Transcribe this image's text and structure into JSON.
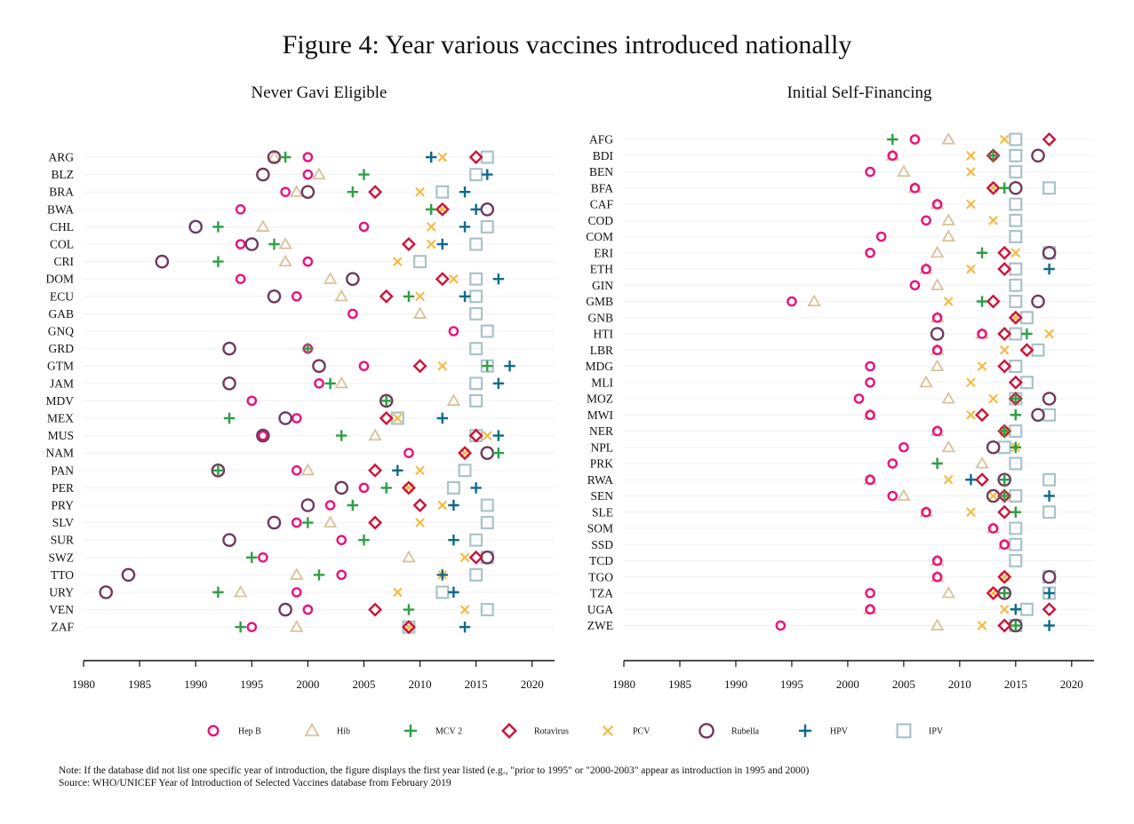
{
  "title": "Figure 4: Year various vaccines introduced nationally",
  "note": "Note: If the database did not list one specific year of introduction, the figure displays the first year listed (e.g., \"prior to 1995\" or \"2000-2003\" appear as introduction in 1995 and 2000)",
  "source": "Source: WHO/UNICEF Year of Introduction of Selected Vaccines database from February 2019",
  "chart_data": {
    "type": "scatter",
    "xlim": [
      1980,
      2022
    ],
    "x_ticks": [
      1980,
      1985,
      1990,
      1995,
      2000,
      2005,
      2010,
      2015,
      2020
    ],
    "grid": true,
    "legend_position": "bottom",
    "vaccines": [
      {
        "key": "hepb",
        "name": "Hep B",
        "marker": "circle-small",
        "color": "#e8127e"
      },
      {
        "key": "hib",
        "name": "Hib",
        "marker": "triangle",
        "color": "#d8c29b"
      },
      {
        "key": "mcv2",
        "name": "MCV 2",
        "marker": "plus-green",
        "color": "#2f9e45"
      },
      {
        "key": "rota",
        "name": "Rotavirus",
        "marker": "diamond",
        "color": "#cf1238"
      },
      {
        "key": "pcv",
        "name": "PCV",
        "marker": "x",
        "color": "#f5b942"
      },
      {
        "key": "rubella",
        "name": "Rubella",
        "marker": "circle-large",
        "color": "#6e3a5e"
      },
      {
        "key": "hpv",
        "name": "HPV",
        "marker": "plus-blue",
        "color": "#0f6a8a"
      },
      {
        "key": "ipv",
        "name": "IPV",
        "marker": "square",
        "color": "#a9c3c6"
      }
    ],
    "panels": [
      {
        "title": "Never Gavi Eligible",
        "countries": [
          {
            "code": "ARG",
            "hepb": 2000,
            "hib": 1997,
            "mcv2": 1998,
            "rota": 2015,
            "pcv": 2012,
            "rubella": 1997,
            "hpv": 2011,
            "ipv": 2016
          },
          {
            "code": "BLZ",
            "hepb": 2000,
            "hib": 2001,
            "mcv2": 2005,
            "rubella": 1996,
            "hpv": 2016,
            "ipv": 2015
          },
          {
            "code": "BRA",
            "hepb": 1998,
            "hib": 1999,
            "mcv2": 2004,
            "rota": 2006,
            "pcv": 2010,
            "rubella": 2000,
            "hpv": 2014,
            "ipv": 2012
          },
          {
            "code": "BWA",
            "hepb": 1994,
            "mcv2": 2011,
            "rota": 2012,
            "pcv": 2012,
            "rubella": 2016,
            "hpv": 2015
          },
          {
            "code": "CHL",
            "hepb": 2005,
            "hib": 1996,
            "mcv2": 1992,
            "pcv": 2011,
            "rubella": 1990,
            "hpv": 2014,
            "ipv": 2016
          },
          {
            "code": "COL",
            "hepb": 1994,
            "hib": 1998,
            "mcv2": 1997,
            "rota": 2009,
            "pcv": 2011,
            "rubella": 1995,
            "hpv": 2012,
            "ipv": 2015
          },
          {
            "code": "CRI",
            "hepb": 2000,
            "hib": 1998,
            "mcv2": 1992,
            "pcv": 2008,
            "rubella": 1987,
            "ipv": 2010
          },
          {
            "code": "DOM",
            "hepb": 1994,
            "hib": 2002,
            "rota": 2012,
            "pcv": 2013,
            "rubella": 2004,
            "hpv": 2017,
            "ipv": 2015
          },
          {
            "code": "ECU",
            "hepb": 1999,
            "hib": 2003,
            "mcv2": 2009,
            "rota": 2007,
            "pcv": 2010,
            "rubella": 1997,
            "hpv": 2014,
            "ipv": 2015
          },
          {
            "code": "GAB",
            "hepb": 2004,
            "hib": 2010,
            "ipv": 2015
          },
          {
            "code": "GNQ",
            "hepb": 2013,
            "ipv": 2016
          },
          {
            "code": "GRD",
            "hepb": 2000,
            "mcv2": 2000,
            "rubella": 1993,
            "ipv": 2015
          },
          {
            "code": "GTM",
            "hepb": 2005,
            "mcv2": 2016,
            "rota": 2010,
            "pcv": 2012,
            "rubella": 2001,
            "hpv": 2018,
            "ipv": 2016
          },
          {
            "code": "JAM",
            "hepb": 2001,
            "hib": 2003,
            "mcv2": 2002,
            "rubella": 1993,
            "hpv": 2017,
            "ipv": 2015
          },
          {
            "code": "MDV",
            "hepb": 1995,
            "hib": 2013,
            "mcv2": 2007,
            "rubella": 2007,
            "ipv": 2015
          },
          {
            "code": "MEX",
            "hepb": 1999,
            "mcv2": 1993,
            "rota": 2007,
            "pcv": 2008,
            "rubella": 1998,
            "hpv": 2012,
            "ipv": 2008
          },
          {
            "code": "MUS",
            "hepb": 1996,
            "hib": 2006,
            "mcv2": 2003,
            "rota": 2015,
            "pcv": 2016,
            "rubella": 1996,
            "hpv": 2017,
            "ipv": 2015
          },
          {
            "code": "NAM",
            "hepb": 2009,
            "mcv2": 2017,
            "rota": 2014,
            "pcv": 2014,
            "rubella": 2016
          },
          {
            "code": "PAN",
            "hepb": 1999,
            "hib": 2000,
            "mcv2": 1992,
            "rota": 2006,
            "pcv": 2010,
            "rubella": 1992,
            "hpv": 2008,
            "ipv": 2014
          },
          {
            "code": "PER",
            "hepb": 2005,
            "mcv2": 2007,
            "rota": 2009,
            "pcv": 2009,
            "rubella": 2003,
            "hpv": 2015,
            "ipv": 2013
          },
          {
            "code": "PRY",
            "hepb": 2002,
            "mcv2": 2004,
            "rota": 2010,
            "pcv": 2012,
            "rubella": 2000,
            "hpv": 2013,
            "ipv": 2016
          },
          {
            "code": "SLV",
            "hepb": 1999,
            "hib": 2002,
            "mcv2": 2000,
            "rota": 2006,
            "pcv": 2010,
            "rubella": 1997,
            "ipv": 2016
          },
          {
            "code": "SUR",
            "hepb": 2003,
            "mcv2": 2005,
            "rubella": 1993,
            "hpv": 2013,
            "ipv": 2015
          },
          {
            "code": "SWZ",
            "hepb": 1996,
            "hib": 2009,
            "mcv2": 1995,
            "rota": 2015,
            "pcv": 2014,
            "rubella": 2016,
            "ipv": 2016
          },
          {
            "code": "TTO",
            "hepb": 2003,
            "hib": 1999,
            "mcv2": 2001,
            "pcv": 2012,
            "rubella": 1984,
            "hpv": 2012,
            "ipv": 2015
          },
          {
            "code": "URY",
            "hepb": 1999,
            "hib": 1994,
            "mcv2": 1992,
            "pcv": 2008,
            "rubella": 1982,
            "hpv": 2013,
            "ipv": 2012
          },
          {
            "code": "VEN",
            "hepb": 2000,
            "mcv2": 2009,
            "rota": 2006,
            "pcv": 2014,
            "rubella": 1998,
            "ipv": 2016
          },
          {
            "code": "ZAF",
            "hepb": 1995,
            "hib": 1999,
            "mcv2": 1994,
            "rota": 2009,
            "pcv": 2009,
            "hpv": 2014,
            "ipv": 2009
          }
        ]
      },
      {
        "title": "Initial Self-Financing",
        "countries": [
          {
            "code": "AFG",
            "hepb": 2006,
            "hib": 2009,
            "mcv2": 2004,
            "rota": 2018,
            "pcv": 2014,
            "ipv": 2015
          },
          {
            "code": "BDI",
            "hepb": 2004,
            "hib": 2004,
            "mcv2": 2013,
            "rota": 2013,
            "pcv": 2011,
            "rubella": 2017,
            "ipv": 2015
          },
          {
            "code": "BEN",
            "hepb": 2002,
            "hib": 2005,
            "pcv": 2011,
            "ipv": 2015
          },
          {
            "code": "BFA",
            "hepb": 2006,
            "hib": 2006,
            "mcv2": 2014,
            "rota": 2013,
            "pcv": 2013,
            "rubella": 2015,
            "ipv": 2018
          },
          {
            "code": "CAF",
            "hepb": 2008,
            "hib": 2008,
            "pcv": 2011,
            "ipv": 2015
          },
          {
            "code": "COD",
            "hepb": 2007,
            "hib": 2009,
            "pcv": 2013,
            "ipv": 2015
          },
          {
            "code": "COM",
            "hepb": 2003,
            "hib": 2009,
            "ipv": 2015
          },
          {
            "code": "ERI",
            "hepb": 2002,
            "hib": 2008,
            "mcv2": 2012,
            "rota": 2014,
            "pcv": 2015,
            "rubella": 2018,
            "ipv": 2018
          },
          {
            "code": "ETH",
            "hepb": 2007,
            "hib": 2007,
            "rota": 2014,
            "pcv": 2011,
            "hpv": 2018,
            "ipv": 2015
          },
          {
            "code": "GIN",
            "hepb": 2006,
            "hib": 2008,
            "ipv": 2015
          },
          {
            "code": "GMB",
            "hepb": 1995,
            "hib": 1997,
            "mcv2": 2012,
            "rota": 2013,
            "pcv": 2009,
            "rubella": 2017,
            "ipv": 2015
          },
          {
            "code": "GNB",
            "hepb": 2008,
            "hib": 2008,
            "rota": 2015,
            "pcv": 2015,
            "ipv": 2016
          },
          {
            "code": "HTI",
            "hepb": 2012,
            "hib": 2012,
            "mcv2": 2016,
            "rota": 2014,
            "pcv": 2018,
            "rubella": 2008,
            "ipv": 2015
          },
          {
            "code": "LBR",
            "hepb": 2008,
            "hib": 2008,
            "rota": 2016,
            "pcv": 2014,
            "ipv": 2017
          },
          {
            "code": "MDG",
            "hepb": 2002,
            "hib": 2008,
            "rota": 2014,
            "pcv": 2012,
            "ipv": 2015
          },
          {
            "code": "MLI",
            "hepb": 2002,
            "hib": 2007,
            "rota": 2015,
            "pcv": 2011,
            "ipv": 2016
          },
          {
            "code": "MOZ",
            "hepb": 2001,
            "hib": 2009,
            "mcv2": 2015,
            "rota": 2015,
            "pcv": 2013,
            "rubella": 2018,
            "ipv": 2015
          },
          {
            "code": "MWI",
            "hepb": 2002,
            "hib": 2002,
            "mcv2": 2015,
            "rota": 2012,
            "pcv": 2011,
            "rubella": 2017,
            "ipv": 2018
          },
          {
            "code": "NER",
            "hepb": 2008,
            "hib": 2008,
            "mcv2": 2014,
            "rota": 2014,
            "pcv": 2014,
            "ipv": 2015
          },
          {
            "code": "NPL",
            "hepb": 2005,
            "hib": 2009,
            "mcv2": 2015,
            "pcv": 2015,
            "rubella": 2013,
            "ipv": 2014
          },
          {
            "code": "PRK",
            "hepb": 2004,
            "hib": 2012,
            "mcv2": 2008,
            "ipv": 2015
          },
          {
            "code": "RWA",
            "hepb": 2002,
            "hib": 2002,
            "mcv2": 2014,
            "rota": 2012,
            "pcv": 2009,
            "rubella": 2014,
            "hpv": 2011,
            "ipv": 2018
          },
          {
            "code": "SEN",
            "hepb": 2004,
            "hib": 2005,
            "mcv2": 2014,
            "rota": 2014,
            "pcv": 2013,
            "rubella": 2013,
            "hpv": 2018,
            "ipv": 2015
          },
          {
            "code": "SLE",
            "hepb": 2007,
            "hib": 2007,
            "mcv2": 2015,
            "rota": 2014,
            "pcv": 2011,
            "ipv": 2018
          },
          {
            "code": "SOM",
            "hepb": 2013,
            "hib": 2013,
            "ipv": 2015
          },
          {
            "code": "SSD",
            "hepb": 2014,
            "hib": 2014,
            "ipv": 2015
          },
          {
            "code": "TCD",
            "hepb": 2008,
            "hib": 2008,
            "ipv": 2015
          },
          {
            "code": "TGO",
            "hepb": 2008,
            "hib": 2008,
            "rota": 2014,
            "pcv": 2014,
            "rubella": 2018,
            "ipv": 2018
          },
          {
            "code": "TZA",
            "hepb": 2002,
            "hib": 2009,
            "mcv2": 2014,
            "rota": 2013,
            "pcv": 2013,
            "rubella": 2014,
            "hpv": 2018,
            "ipv": 2018
          },
          {
            "code": "UGA",
            "hepb": 2002,
            "hib": 2002,
            "rota": 2018,
            "pcv": 2014,
            "hpv": 2015,
            "ipv": 2016
          },
          {
            "code": "ZWE",
            "hepb": 1994,
            "hib": 2008,
            "mcv2": 2015,
            "rota": 2014,
            "pcv": 2012,
            "rubella": 2015,
            "hpv": 2018,
            "ipv": 2015
          }
        ]
      }
    ]
  }
}
